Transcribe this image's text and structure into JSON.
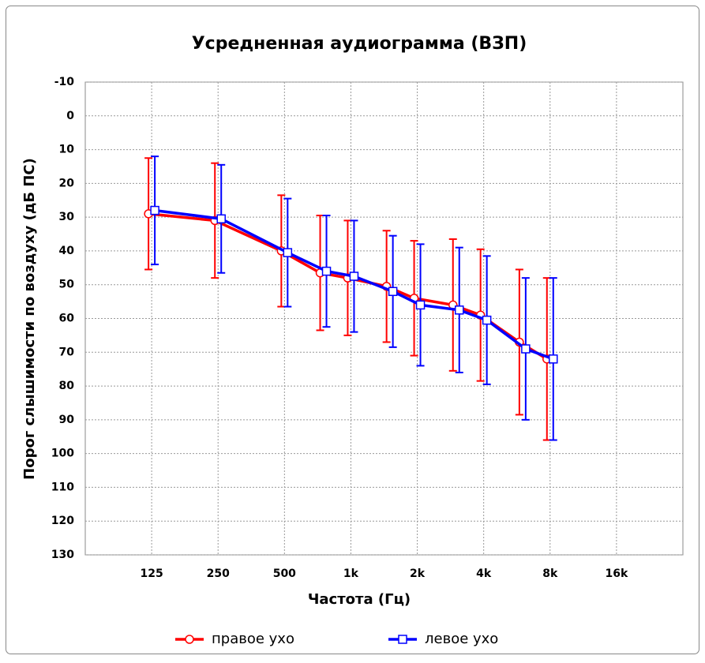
{
  "chart_data": {
    "type": "line",
    "title": "Усредненная аудиограмма (ВЗП)",
    "x_label": "Частота (Гц)",
    "y_label": "Порог слышимости по воздуху (дБ ПС)",
    "x": [
      125,
      250,
      500,
      750,
      1000,
      1500,
      2000,
      3000,
      4000,
      6000,
      8000
    ],
    "xlim": [
      62.5,
      32000
    ],
    "x_log": true,
    "xticks": [
      125,
      250,
      500,
      {
        "value": 1000,
        "label": "1k"
      },
      {
        "value": 2000,
        "label": "2k"
      },
      {
        "value": 4000,
        "label": "4k"
      },
      {
        "value": 8000,
        "label": "8k"
      },
      {
        "value": 16000,
        "label": "16k"
      }
    ],
    "ylim": [
      -10,
      130
    ],
    "invert_y": true,
    "yticks": [
      -10,
      0,
      10,
      20,
      30,
      40,
      50,
      60,
      70,
      80,
      90,
      100,
      110,
      120,
      130
    ],
    "grid": true,
    "legend": "bottom",
    "series": [
      {
        "name": "правое ухо",
        "color": "#ff0000",
        "marker": "circle",
        "values": [
          29,
          31,
          40,
          46.5,
          48,
          50.5,
          54,
          56,
          59,
          67,
          72
        ],
        "errors": [
          16.5,
          17,
          16.5,
          17,
          17,
          16.5,
          17,
          19.5,
          19.5,
          21.5,
          24
        ]
      },
      {
        "name": "левое ухо",
        "color": "#0000ff",
        "marker": "square",
        "values": [
          28,
          30.5,
          40.5,
          46,
          47.5,
          52,
          56,
          57.5,
          60.5,
          69,
          72
        ],
        "errors": [
          16,
          16,
          16,
          16.5,
          16.5,
          16.5,
          18,
          18.5,
          19,
          21,
          24
        ]
      }
    ]
  }
}
